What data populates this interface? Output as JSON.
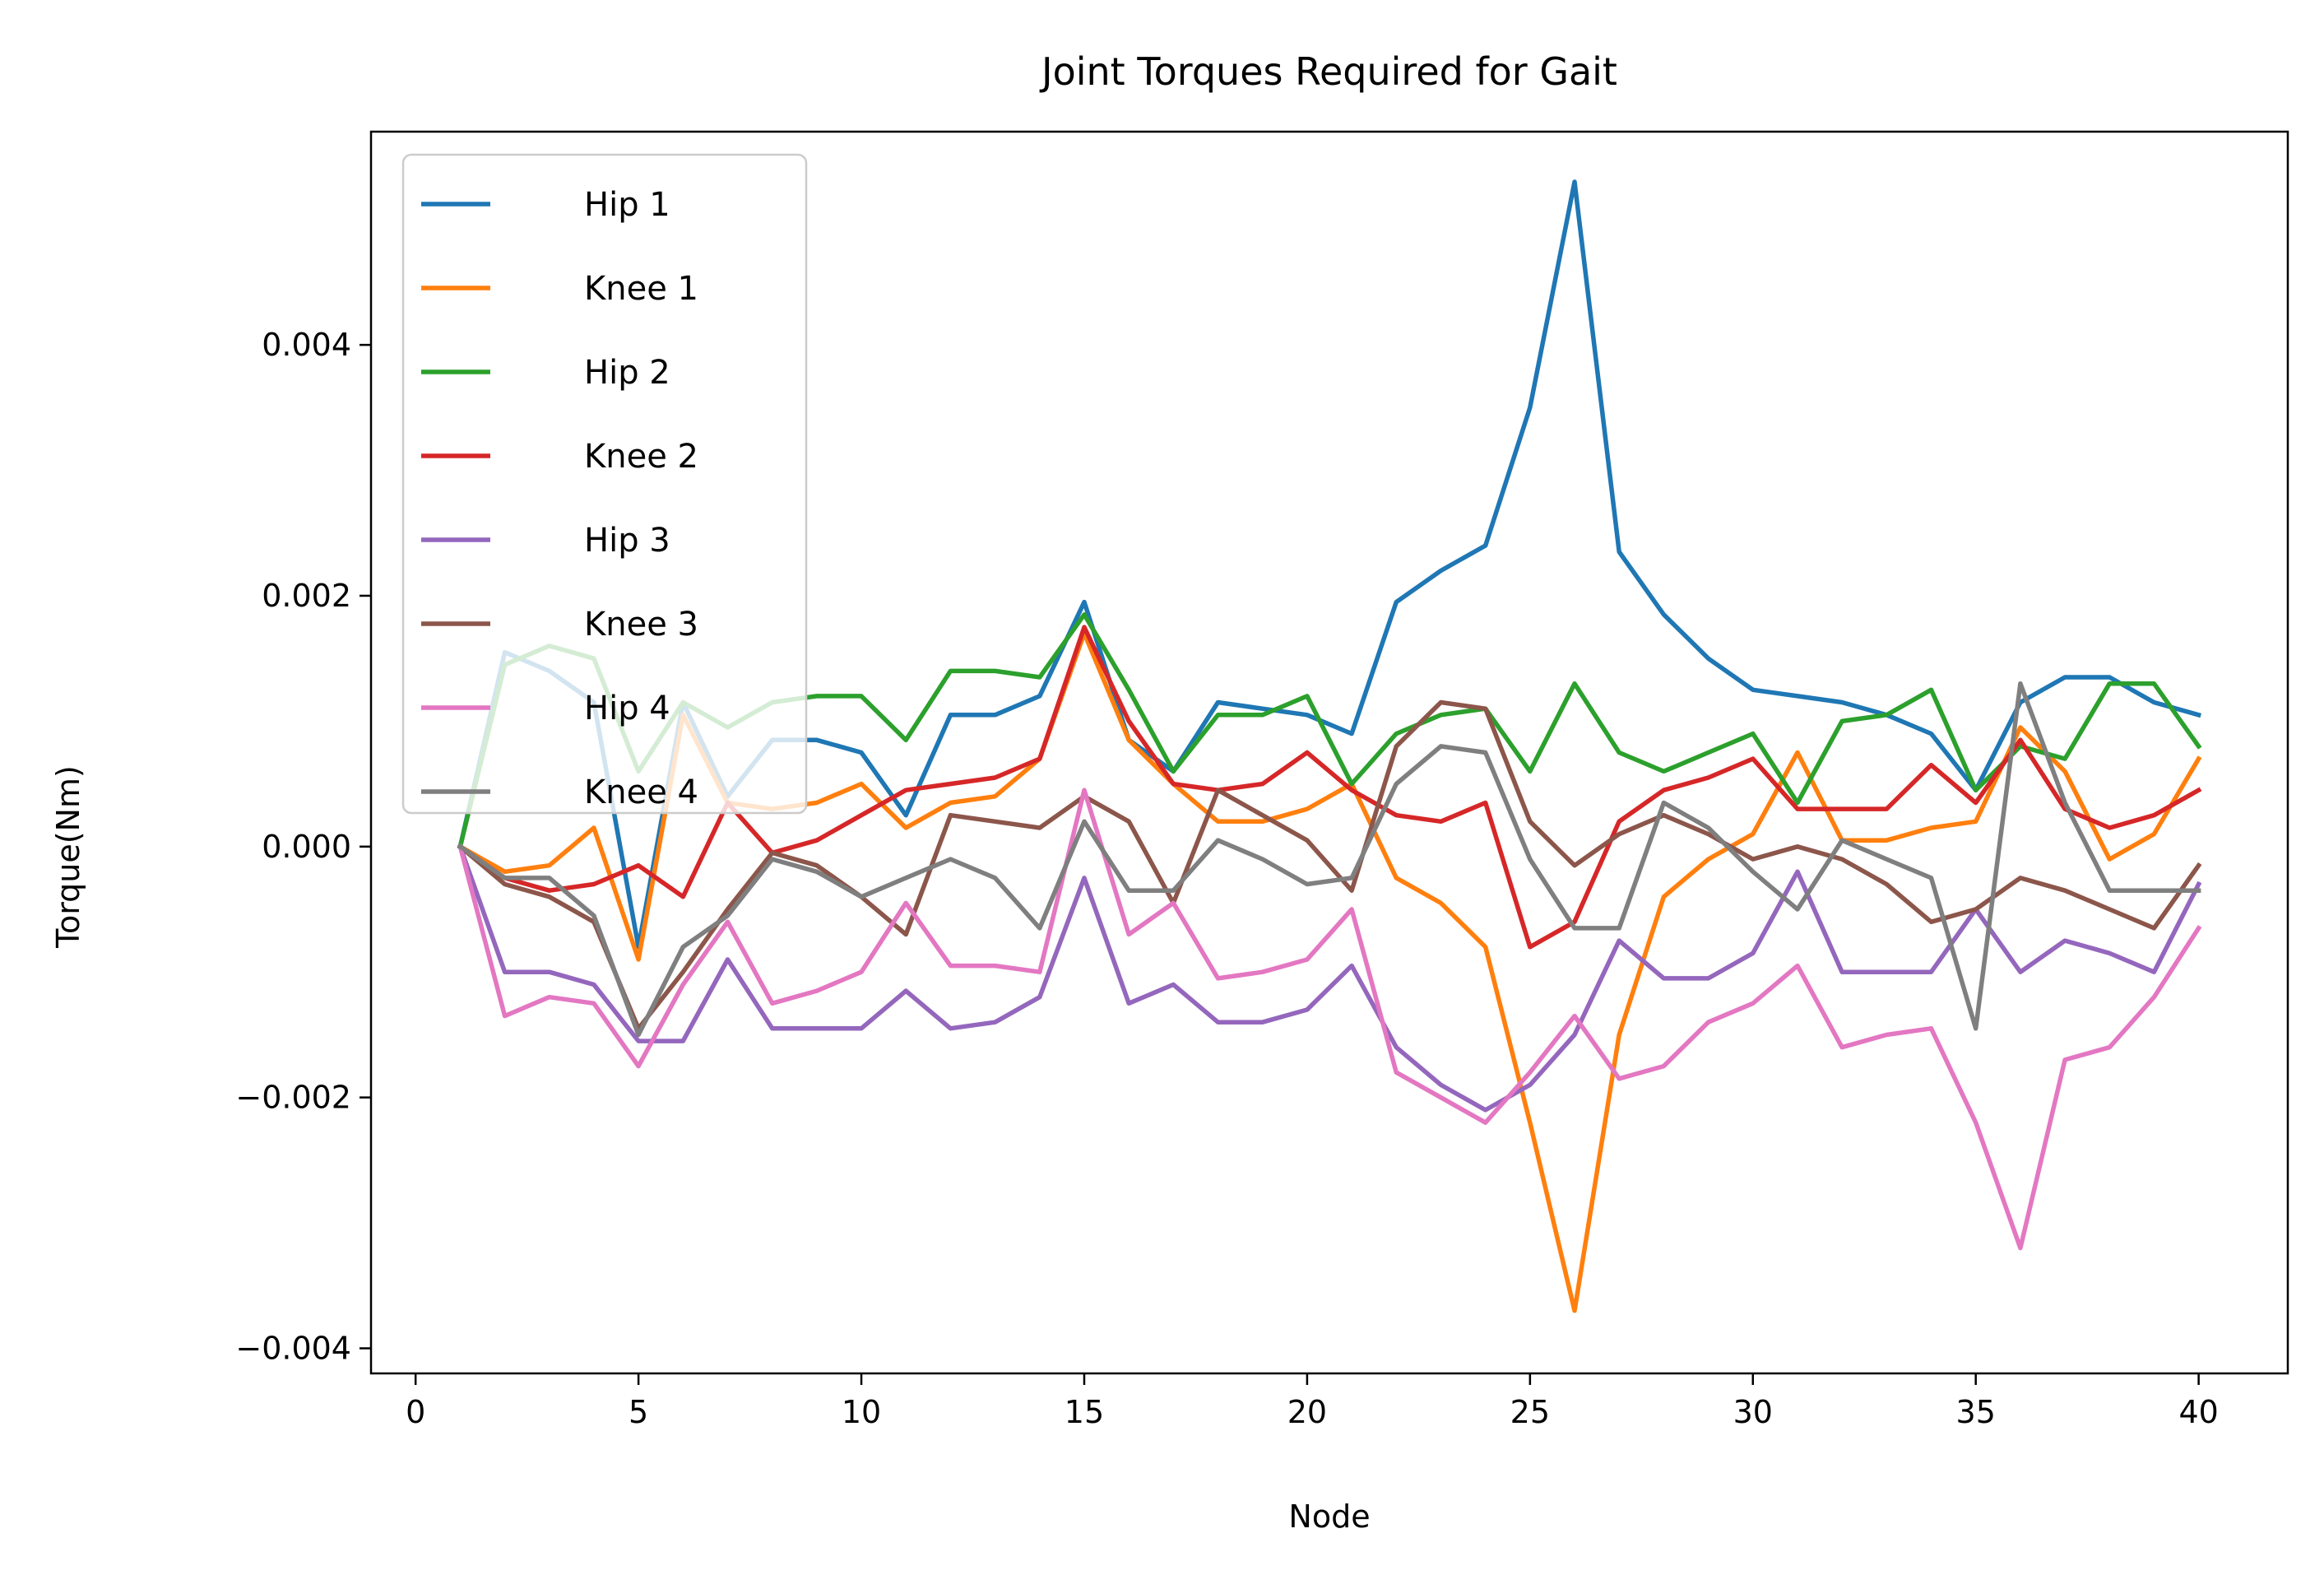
{
  "chart_data": {
    "type": "line",
    "title": "Joint Torques Required for Gait",
    "xlabel": "Node",
    "ylabel": "Torque(Nm)",
    "xlim": [
      -1,
      42
    ],
    "ylim": [
      -0.0042,
      0.0057
    ],
    "xticks": [
      0,
      5,
      10,
      15,
      20,
      25,
      30,
      35,
      40
    ],
    "xtick_labels": [
      "0",
      "5",
      "10",
      "15",
      "20",
      "25",
      "30",
      "35",
      "40"
    ],
    "yticks": [
      -0.004,
      -0.002,
      0.0,
      0.002,
      0.004
    ],
    "ytick_labels": [
      "−0.004",
      "−0.002",
      "0.000",
      "0.002",
      "0.004"
    ],
    "grid": false,
    "legend_position": "top-left",
    "x": [
      1,
      2,
      3,
      4,
      5,
      6,
      7,
      8,
      9,
      10,
      11,
      12,
      13,
      14,
      15,
      16,
      17,
      18,
      19,
      20,
      21,
      22,
      23,
      24,
      25,
      26,
      27,
      28,
      29,
      30,
      31,
      32,
      33,
      34,
      35,
      36,
      37,
      38,
      39,
      40
    ],
    "series": [
      {
        "name": "Hip 1",
        "color": "#1f77b4",
        "values": [
          0,
          0.00155,
          0.0014,
          0.00115,
          -0.0008,
          0.00115,
          0.0004,
          0.00085,
          0.00085,
          0.00075,
          0.00025,
          0.00105,
          0.00105,
          0.0012,
          0.00195,
          0.00085,
          0.0006,
          0.00115,
          0.0011,
          0.00105,
          0.0009,
          0.00195,
          0.0022,
          0.0024,
          0.0035,
          0.0053,
          0.00235,
          0.00185,
          0.0015,
          0.00125,
          0.0012,
          0.00115,
          0.00105,
          0.0009,
          0.00045,
          0.00115,
          0.00135,
          0.00135,
          0.00115,
          0.00105
        ]
      },
      {
        "name": "Knee 1",
        "color": "#ff7f0e",
        "values": [
          0,
          -0.0002,
          -0.00015,
          0.00015,
          -0.0009,
          0.00105,
          0.00035,
          0.0003,
          0.00035,
          0.0005,
          0.00015,
          0.00035,
          0.0004,
          0.0007,
          0.0017,
          0.00085,
          0.0005,
          0.0002,
          0.0002,
          0.0003,
          0.0005,
          -0.00025,
          -0.00045,
          -0.0008,
          -0.0022,
          -0.0037,
          -0.0015,
          -0.0004,
          -0.0001,
          0.0001,
          0.00075,
          5e-05,
          5e-05,
          0.00015,
          0.0002,
          0.00095,
          0.0006,
          -0.0001,
          0.0001,
          0.0007
        ]
      },
      {
        "name": "Hip 2",
        "color": "#2ca02c",
        "values": [
          0,
          0.00145,
          0.0016,
          0.0015,
          0.0006,
          0.00115,
          0.00095,
          0.00115,
          0.0012,
          0.0012,
          0.00085,
          0.0014,
          0.0014,
          0.00135,
          0.00185,
          0.00125,
          0.0006,
          0.00105,
          0.00105,
          0.0012,
          0.0005,
          0.0009,
          0.00105,
          0.0011,
          0.0006,
          0.0013,
          0.00075,
          0.0006,
          0.00075,
          0.0009,
          0.00035,
          0.001,
          0.00105,
          0.00125,
          0.00045,
          0.0008,
          0.0007,
          0.0013,
          0.0013,
          0.0008
        ]
      },
      {
        "name": "Knee 2",
        "color": "#d62728",
        "values": [
          0,
          -0.00025,
          -0.00035,
          -0.0003,
          -0.00015,
          -0.0004,
          0.00035,
          -5e-05,
          5e-05,
          0.00025,
          0.00045,
          0.0005,
          0.00055,
          0.0007,
          0.00175,
          0.001,
          0.0005,
          0.00045,
          0.0005,
          0.00075,
          0.00045,
          0.00025,
          0.0002,
          0.00035,
          -0.0008,
          -0.0006,
          0.0002,
          0.00045,
          0.00055,
          0.0007,
          0.0003,
          0.0003,
          0.0003,
          0.00065,
          0.00035,
          0.00085,
          0.0003,
          0.00015,
          0.00025,
          0.00045
        ]
      },
      {
        "name": "Hip 3",
        "color": "#9467bd",
        "values": [
          0,
          -0.001,
          -0.001,
          -0.0011,
          -0.00155,
          -0.00155,
          -0.0009,
          -0.00145,
          -0.00145,
          -0.00145,
          -0.00115,
          -0.00145,
          -0.0014,
          -0.0012,
          -0.00025,
          -0.00125,
          -0.0011,
          -0.0014,
          -0.0014,
          -0.0013,
          -0.00095,
          -0.0016,
          -0.0019,
          -0.0021,
          -0.0019,
          -0.0015,
          -0.00075,
          -0.00105,
          -0.00105,
          -0.00085,
          -0.0002,
          -0.001,
          -0.001,
          -0.001,
          -0.0005,
          -0.001,
          -0.00075,
          -0.00085,
          -0.001,
          -0.0003
        ]
      },
      {
        "name": "Knee 3",
        "color": "#8c564b",
        "values": [
          0,
          -0.0003,
          -0.0004,
          -0.0006,
          -0.00145,
          -0.001,
          -0.0005,
          -5e-05,
          -0.00015,
          -0.0004,
          -0.0007,
          0.00025,
          0.0002,
          0.00015,
          0.0004,
          0.0002,
          -0.00045,
          0.00045,
          0.00025,
          5e-05,
          -0.00035,
          0.0008,
          0.00115,
          0.0011,
          0.0002,
          -0.00015,
          0.0001,
          0.00025,
          0.0001,
          -0.0001,
          0,
          -0.0001,
          -0.0003,
          -0.0006,
          -0.0005,
          -0.00025,
          -0.00035,
          -0.0005,
          -0.00065,
          -0.00015
        ]
      },
      {
        "name": "Hip 4",
        "color": "#e377c2",
        "values": [
          0,
          -0.00135,
          -0.0012,
          -0.00125,
          -0.00175,
          -0.0011,
          -0.0006,
          -0.00125,
          -0.00115,
          -0.001,
          -0.00045,
          -0.00095,
          -0.00095,
          -0.001,
          0.00045,
          -0.0007,
          -0.00045,
          -0.00105,
          -0.001,
          -0.0009,
          -0.0005,
          -0.0018,
          -0.002,
          -0.0022,
          -0.0018,
          -0.00135,
          -0.00185,
          -0.00175,
          -0.0014,
          -0.00125,
          -0.00095,
          -0.0016,
          -0.0015,
          -0.00145,
          -0.0022,
          -0.0032,
          -0.0017,
          -0.0016,
          -0.0012,
          -0.00065
        ]
      },
      {
        "name": "Knee 4",
        "color": "#7f7f7f",
        "values": [
          0,
          -0.00025,
          -0.00025,
          -0.00055,
          -0.0015,
          -0.0008,
          -0.00055,
          -0.0001,
          -0.0002,
          -0.0004,
          -0.00025,
          -0.0001,
          -0.00025,
          -0.00065,
          0.0002,
          -0.00035,
          -0.00035,
          5e-05,
          -0.0001,
          -0.0003,
          -0.00025,
          0.0005,
          0.0008,
          0.00075,
          -0.0001,
          -0.00065,
          -0.00065,
          0.00035,
          0.00015,
          -0.0002,
          -0.0005,
          5e-05,
          -0.0001,
          -0.00025,
          -0.00145,
          0.0013,
          0.00035,
          -0.00035,
          -0.00035,
          -0.00035
        ]
      }
    ]
  }
}
